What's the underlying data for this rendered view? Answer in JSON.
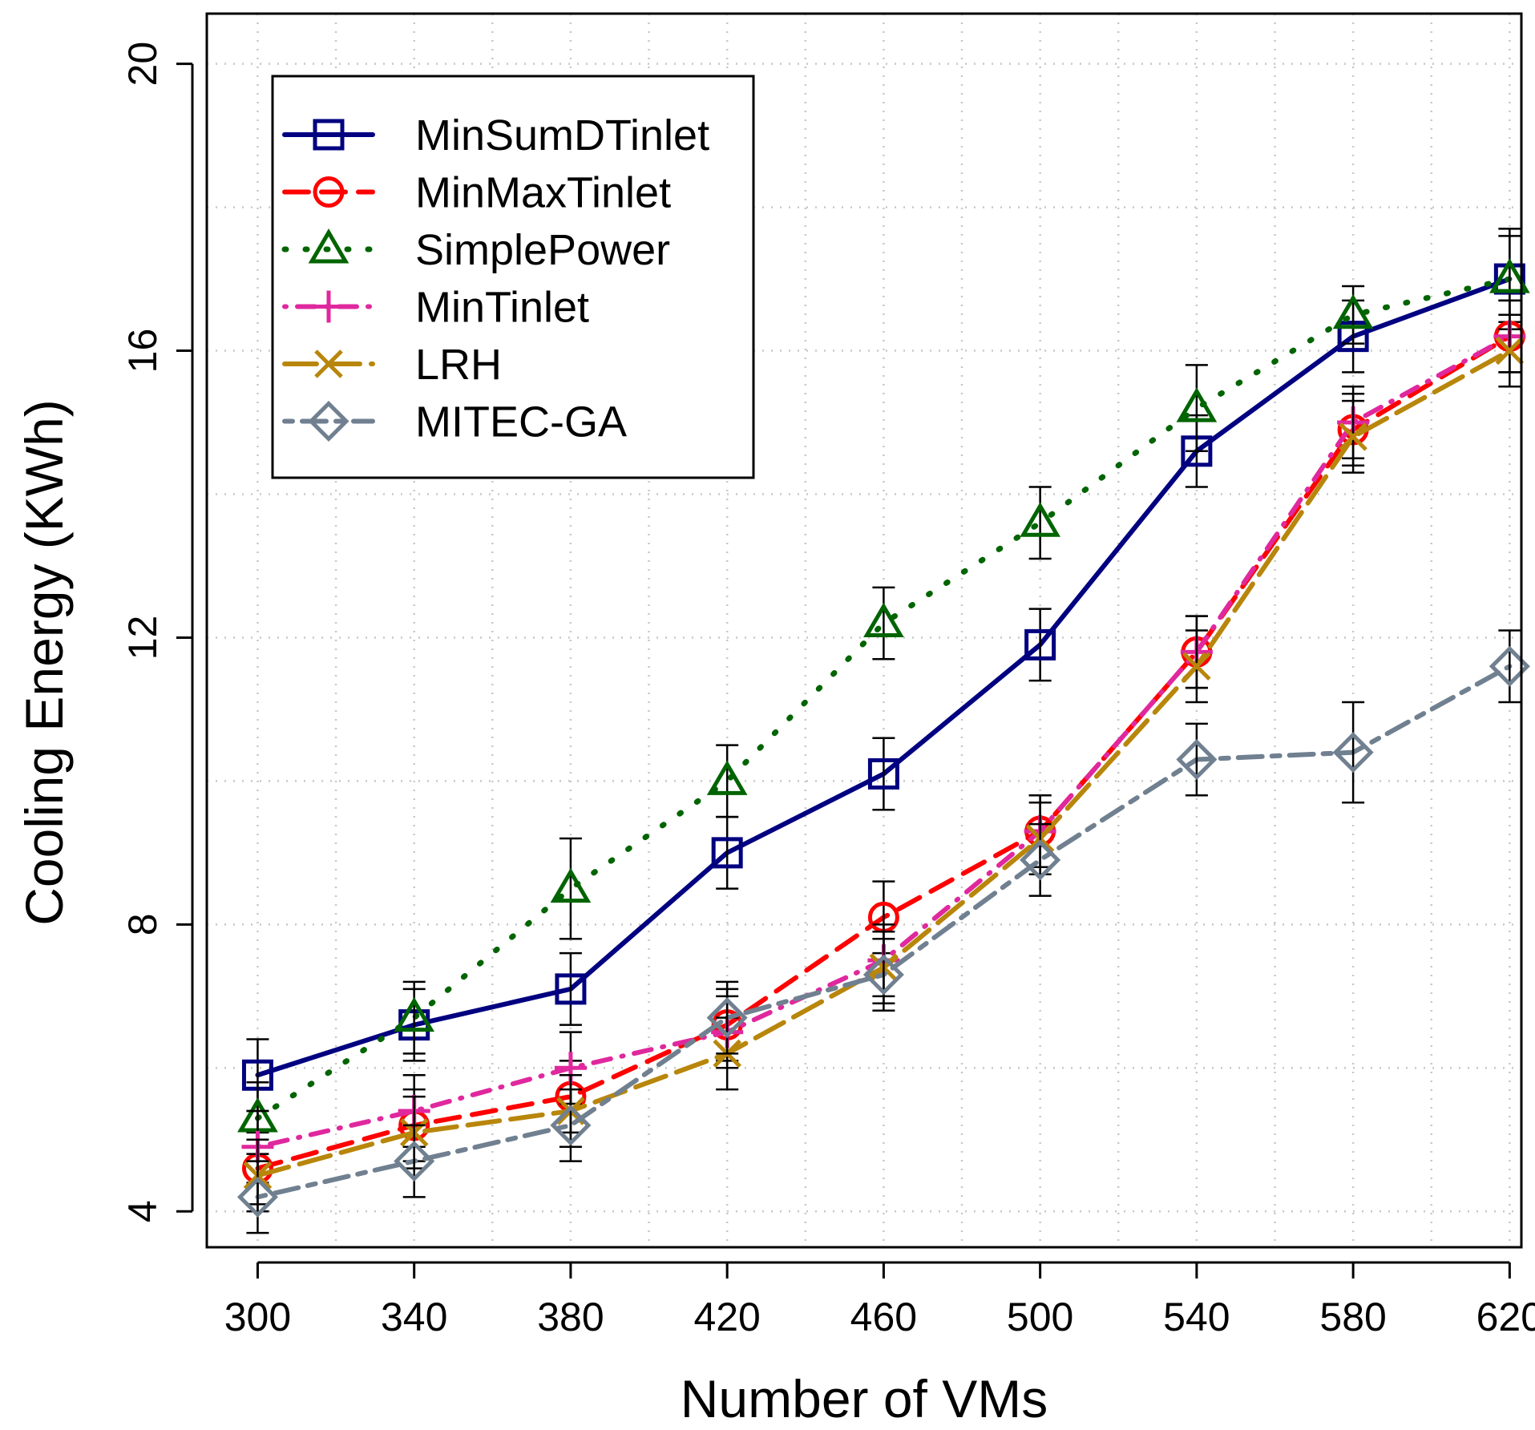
{
  "chart_data": {
    "type": "line",
    "xlabel": "Number of VMs",
    "ylabel": "Cooling Energy (KWh)",
    "x": [
      300,
      340,
      380,
      420,
      460,
      500,
      540,
      580,
      620
    ],
    "xlim": [
      287,
      623
    ],
    "ylim": [
      3.5,
      20.7
    ],
    "xticks": [
      300,
      340,
      380,
      420,
      460,
      500,
      540,
      580,
      620
    ],
    "yticks": [
      4,
      8,
      12,
      16,
      20
    ],
    "grid": true,
    "legend_position": "top-left",
    "series": [
      {
        "name": "MinSumDTinlet",
        "color": "#000080",
        "marker": "square",
        "dash": "solid",
        "values": [
          5.9,
          6.6,
          7.1,
          9.0,
          10.1,
          11.9,
          14.6,
          16.2,
          17.0
        ],
        "errors": [
          0.5,
          0.5,
          0.5,
          0.5,
          0.5,
          0.5,
          0.5,
          0.5,
          0.6
        ]
      },
      {
        "name": "MinMaxTinlet",
        "color": "#ff0000",
        "marker": "circle",
        "dash": "dashed",
        "values": [
          4.6,
          5.2,
          5.6,
          6.6,
          8.1,
          9.3,
          11.8,
          14.9,
          16.2
        ],
        "errors": [
          0.5,
          0.5,
          0.5,
          0.5,
          0.5,
          0.5,
          0.5,
          0.5,
          0.5
        ]
      },
      {
        "name": "SimplePower",
        "color": "#006400",
        "marker": "triangle",
        "dash": "dotted",
        "values": [
          5.3,
          6.7,
          8.5,
          10.0,
          12.2,
          13.6,
          15.2,
          16.5,
          17.0
        ],
        "errors": [
          0.5,
          0.5,
          0.7,
          0.5,
          0.5,
          0.5,
          0.6,
          0.4,
          0.7
        ]
      },
      {
        "name": "MinTinlet",
        "color": "#e0289e",
        "marker": "plus",
        "dash": "dotdash",
        "values": [
          4.9,
          5.4,
          6.0,
          6.5,
          7.5,
          9.3,
          11.8,
          15.0,
          16.2
        ],
        "errors": [
          0.5,
          0.5,
          0.5,
          0.5,
          0.5,
          0.5,
          0.5,
          0.5,
          0.5
        ]
      },
      {
        "name": "LRH",
        "color": "#b8860b",
        "marker": "x",
        "dash": "longdash",
        "values": [
          4.5,
          5.1,
          5.4,
          6.2,
          7.4,
          9.2,
          11.6,
          14.8,
          16.0
        ],
        "errors": [
          0.5,
          0.5,
          0.5,
          0.5,
          0.5,
          0.5,
          0.5,
          0.5,
          0.5
        ]
      },
      {
        "name": "MITEC-GA",
        "color": "#708090",
        "marker": "diamond",
        "dash": "twodash",
        "values": [
          4.2,
          4.7,
          5.2,
          6.7,
          7.3,
          8.9,
          10.3,
          10.4,
          11.6
        ],
        "errors": [
          0.5,
          0.5,
          0.5,
          0.5,
          0.5,
          0.5,
          0.5,
          0.7,
          0.5
        ]
      }
    ]
  }
}
